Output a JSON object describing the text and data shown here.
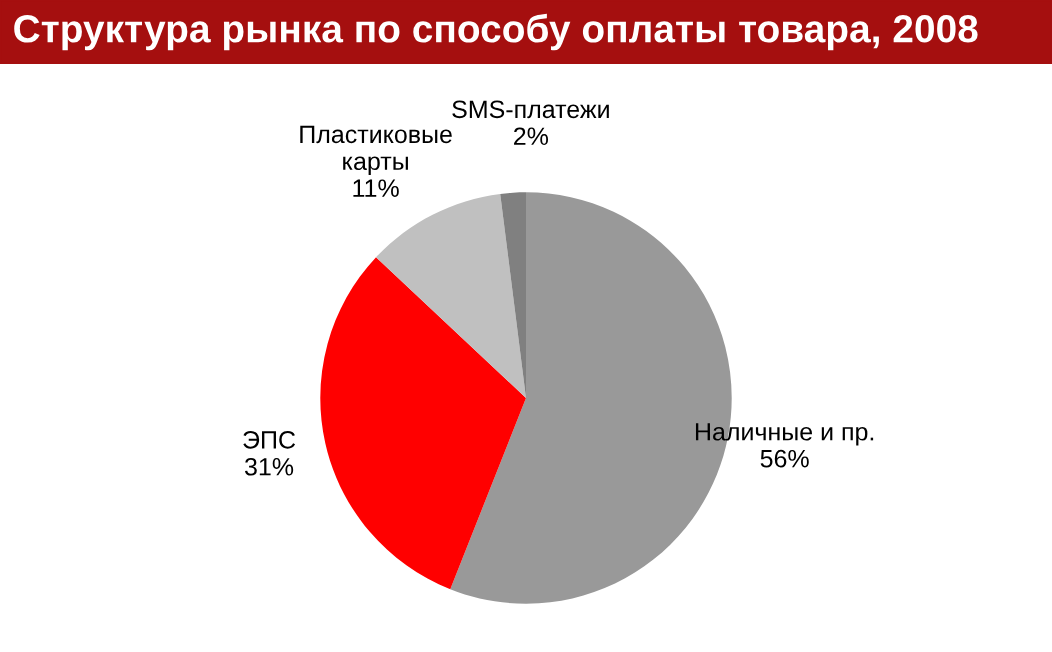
{
  "chart_data": {
    "type": "pie",
    "title": "Структура рынка по способу оплаты товара, 2008",
    "categories": [
      "Наличные и пр.",
      "ЭПС",
      "Пластиковые карты",
      "SMS-платежи"
    ],
    "values": [
      56,
      31,
      11,
      2
    ],
    "value_labels": [
      "56%",
      "31%",
      "11%",
      "2%"
    ],
    "colors": [
      "#999999",
      "#ff0000",
      "#c0c0c0",
      "#808080"
    ]
  }
}
